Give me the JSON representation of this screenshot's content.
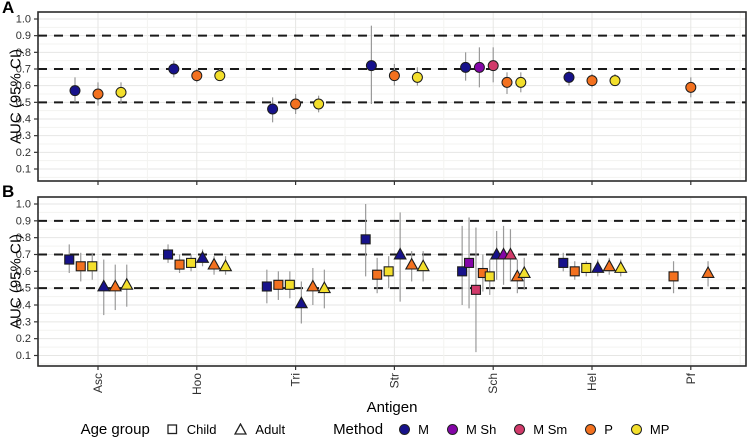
{
  "figure": {
    "panel_a_label": "A",
    "panel_b_label": "B",
    "y_axis_label": "AUC (95% CI)",
    "x_axis_label": "Antigen"
  },
  "axes": {
    "y_ticks": [
      "1.0",
      "0.9",
      "0.8",
      "0.7",
      "0.6",
      "0.5",
      "0.4",
      "0.3",
      "0.2",
      "0.1"
    ],
    "y_range": [
      0.1,
      1.0
    ],
    "reference_lines": [
      0.9,
      0.7,
      0.5
    ],
    "antigens": [
      "Asc",
      "Hoo",
      "Tri",
      "Str",
      "Sch",
      "Hel",
      "Pf"
    ]
  },
  "legend": {
    "age_group": {
      "title": "Age group",
      "items": [
        {
          "label": "Child",
          "shape": "square"
        },
        {
          "label": "Adult",
          "shape": "triangle"
        }
      ]
    },
    "method": {
      "title": "Method",
      "items": [
        {
          "label": "M",
          "color": "#17128B"
        },
        {
          "label": "M Sh",
          "color": "#8405A7"
        },
        {
          "label": "M Sm",
          "color": "#D13A6A"
        },
        {
          "label": "P",
          "color": "#F3711F"
        },
        {
          "label": "MP",
          "color": "#F3DF2C"
        }
      ]
    }
  },
  "chart_data": [
    {
      "panel": "A",
      "type": "scatter",
      "marker": "circle",
      "ylabel": "AUC (95% CI)",
      "ylim": [
        0.1,
        1.0
      ],
      "grid": true,
      "points": [
        {
          "antigen": "Asc",
          "method": "M",
          "auc": 0.57,
          "ci_low": 0.5,
          "ci_high": 0.65
        },
        {
          "antigen": "Asc",
          "method": "P",
          "auc": 0.55,
          "ci_low": 0.48,
          "ci_high": 0.62
        },
        {
          "antigen": "Asc",
          "method": "MP",
          "auc": 0.56,
          "ci_low": 0.49,
          "ci_high": 0.62
        },
        {
          "antigen": "Hoo",
          "method": "M",
          "auc": 0.7,
          "ci_low": 0.65,
          "ci_high": 0.75
        },
        {
          "antigen": "Hoo",
          "method": "P",
          "auc": 0.66,
          "ci_low": 0.62,
          "ci_high": 0.7
        },
        {
          "antigen": "Hoo",
          "method": "MP",
          "auc": 0.66,
          "ci_low": 0.63,
          "ci_high": 0.7
        },
        {
          "antigen": "Tri",
          "method": "M",
          "auc": 0.46,
          "ci_low": 0.38,
          "ci_high": 0.53
        },
        {
          "antigen": "Tri",
          "method": "P",
          "auc": 0.49,
          "ci_low": 0.43,
          "ci_high": 0.55
        },
        {
          "antigen": "Tri",
          "method": "MP",
          "auc": 0.49,
          "ci_low": 0.44,
          "ci_high": 0.54
        },
        {
          "antigen": "Str",
          "method": "M",
          "auc": 0.72,
          "ci_low": 0.49,
          "ci_high": 0.96
        },
        {
          "antigen": "Str",
          "method": "P",
          "auc": 0.66,
          "ci_low": 0.6,
          "ci_high": 0.73
        },
        {
          "antigen": "Str",
          "method": "MP",
          "auc": 0.65,
          "ci_low": 0.6,
          "ci_high": 0.71
        },
        {
          "antigen": "Sch",
          "method": "M",
          "auc": 0.71,
          "ci_low": 0.63,
          "ci_high": 0.8
        },
        {
          "antigen": "Sch",
          "method": "M Sh",
          "auc": 0.71,
          "ci_low": 0.59,
          "ci_high": 0.83
        },
        {
          "antigen": "Sch",
          "method": "M Sm",
          "auc": 0.72,
          "ci_low": 0.62,
          "ci_high": 0.83
        },
        {
          "antigen": "Sch",
          "method": "P",
          "auc": 0.62,
          "ci_low": 0.55,
          "ci_high": 0.68
        },
        {
          "antigen": "Sch",
          "method": "MP",
          "auc": 0.62,
          "ci_low": 0.56,
          "ci_high": 0.68
        },
        {
          "antigen": "Hel",
          "method": "M",
          "auc": 0.65,
          "ci_low": 0.6,
          "ci_high": 0.69
        },
        {
          "antigen": "Hel",
          "method": "P",
          "auc": 0.63,
          "ci_low": 0.59,
          "ci_high": 0.67
        },
        {
          "antigen": "Hel",
          "method": "MP",
          "auc": 0.63,
          "ci_low": 0.6,
          "ci_high": 0.67
        },
        {
          "antigen": "Pf",
          "method": "P",
          "auc": 0.59,
          "ci_low": 0.53,
          "ci_high": 0.65
        }
      ]
    },
    {
      "panel": "B",
      "type": "scatter",
      "markers": {
        "Child": "square",
        "Adult": "triangle"
      },
      "ylabel": "AUC (95% CI)",
      "ylim": [
        0.1,
        1.0
      ],
      "grid": true,
      "points": [
        {
          "antigen": "Asc",
          "age_group": "Child",
          "method": "M",
          "auc": 0.67,
          "ci_low": 0.59,
          "ci_high": 0.76
        },
        {
          "antigen": "Asc",
          "age_group": "Child",
          "method": "P",
          "auc": 0.63,
          "ci_low": 0.54,
          "ci_high": 0.71
        },
        {
          "antigen": "Asc",
          "age_group": "Child",
          "method": "MP",
          "auc": 0.63,
          "ci_low": 0.55,
          "ci_high": 0.71
        },
        {
          "antigen": "Asc",
          "age_group": "Adult",
          "method": "M",
          "auc": 0.51,
          "ci_low": 0.34,
          "ci_high": 0.67
        },
        {
          "antigen": "Asc",
          "age_group": "Adult",
          "method": "P",
          "auc": 0.51,
          "ci_low": 0.37,
          "ci_high": 0.64
        },
        {
          "antigen": "Asc",
          "age_group": "Adult",
          "method": "MP",
          "auc": 0.52,
          "ci_low": 0.39,
          "ci_high": 0.64
        },
        {
          "antigen": "Hoo",
          "age_group": "Child",
          "method": "M",
          "auc": 0.7,
          "ci_low": 0.65,
          "ci_high": 0.76
        },
        {
          "antigen": "Hoo",
          "age_group": "Child",
          "method": "P",
          "auc": 0.64,
          "ci_low": 0.59,
          "ci_high": 0.7
        },
        {
          "antigen": "Hoo",
          "age_group": "Child",
          "method": "MP",
          "auc": 0.65,
          "ci_low": 0.6,
          "ci_high": 0.7
        },
        {
          "antigen": "Hoo",
          "age_group": "Adult",
          "method": "M",
          "auc": 0.68,
          "ci_low": 0.63,
          "ci_high": 0.73
        },
        {
          "antigen": "Hoo",
          "age_group": "Adult",
          "method": "P",
          "auc": 0.64,
          "ci_low": 0.58,
          "ci_high": 0.69
        },
        {
          "antigen": "Hoo",
          "age_group": "Adult",
          "method": "MP",
          "auc": 0.63,
          "ci_low": 0.58,
          "ci_high": 0.69
        },
        {
          "antigen": "Tri",
          "age_group": "Child",
          "method": "M",
          "auc": 0.51,
          "ci_low": 0.41,
          "ci_high": 0.61
        },
        {
          "antigen": "Tri",
          "age_group": "Child",
          "method": "P",
          "auc": 0.52,
          "ci_low": 0.43,
          "ci_high": 0.6
        },
        {
          "antigen": "Tri",
          "age_group": "Child",
          "method": "MP",
          "auc": 0.52,
          "ci_low": 0.44,
          "ci_high": 0.6
        },
        {
          "antigen": "Tri",
          "age_group": "Adult",
          "method": "M",
          "auc": 0.41,
          "ci_low": 0.29,
          "ci_high": 0.54
        },
        {
          "antigen": "Tri",
          "age_group": "Adult",
          "method": "P",
          "auc": 0.51,
          "ci_low": 0.4,
          "ci_high": 0.62
        },
        {
          "antigen": "Tri",
          "age_group": "Adult",
          "method": "MP",
          "auc": 0.5,
          "ci_low": 0.38,
          "ci_high": 0.61
        },
        {
          "antigen": "Str",
          "age_group": "Child",
          "method": "M",
          "auc": 0.79,
          "ci_low": 0.57,
          "ci_high": 1.0
        },
        {
          "antigen": "Str",
          "age_group": "Child",
          "method": "P",
          "auc": 0.58,
          "ci_low": 0.47,
          "ci_high": 0.68
        },
        {
          "antigen": "Str",
          "age_group": "Child",
          "method": "MP",
          "auc": 0.6,
          "ci_low": 0.5,
          "ci_high": 0.69
        },
        {
          "antigen": "Str",
          "age_group": "Adult",
          "method": "M",
          "auc": 0.7,
          "ci_low": 0.42,
          "ci_high": 0.95
        },
        {
          "antigen": "Str",
          "age_group": "Adult",
          "method": "P",
          "auc": 0.64,
          "ci_low": 0.54,
          "ci_high": 0.72
        },
        {
          "antigen": "Str",
          "age_group": "Adult",
          "method": "MP",
          "auc": 0.63,
          "ci_low": 0.54,
          "ci_high": 0.72
        },
        {
          "antigen": "Sch",
          "age_group": "Child",
          "method": "M",
          "auc": 0.6,
          "ci_low": 0.4,
          "ci_high": 0.87
        },
        {
          "antigen": "Sch",
          "age_group": "Child",
          "method": "M Sh",
          "auc": 0.65,
          "ci_low": 0.38,
          "ci_high": 0.92
        },
        {
          "antigen": "Sch",
          "age_group": "Child",
          "method": "M Sm",
          "auc": 0.49,
          "ci_low": 0.12,
          "ci_high": 0.86
        },
        {
          "antigen": "Sch",
          "age_group": "Child",
          "method": "P",
          "auc": 0.59,
          "ci_low": 0.48,
          "ci_high": 0.7
        },
        {
          "antigen": "Sch",
          "age_group": "Child",
          "method": "MP",
          "auc": 0.57,
          "ci_low": 0.46,
          "ci_high": 0.67
        },
        {
          "antigen": "Sch",
          "age_group": "Adult",
          "method": "M",
          "auc": 0.7,
          "ci_low": 0.55,
          "ci_high": 0.84
        },
        {
          "antigen": "Sch",
          "age_group": "Adult",
          "method": "M Sh",
          "auc": 0.7,
          "ci_low": 0.52,
          "ci_high": 0.87
        },
        {
          "antigen": "Sch",
          "age_group": "Adult",
          "method": "M Sm",
          "auc": 0.7,
          "ci_low": 0.54,
          "ci_high": 0.85
        },
        {
          "antigen": "Sch",
          "age_group": "Adult",
          "method": "P",
          "auc": 0.57,
          "ci_low": 0.47,
          "ci_high": 0.67
        },
        {
          "antigen": "Sch",
          "age_group": "Adult",
          "method": "MP",
          "auc": 0.59,
          "ci_low": 0.49,
          "ci_high": 0.68
        },
        {
          "antigen": "Hel",
          "age_group": "Child",
          "method": "M",
          "auc": 0.65,
          "ci_low": 0.6,
          "ci_high": 0.71
        },
        {
          "antigen": "Hel",
          "age_group": "Child",
          "method": "P",
          "auc": 0.6,
          "ci_low": 0.55,
          "ci_high": 0.66
        },
        {
          "antigen": "Hel",
          "age_group": "Child",
          "method": "MP",
          "auc": 0.62,
          "ci_low": 0.57,
          "ci_high": 0.66
        },
        {
          "antigen": "Hel",
          "age_group": "Adult",
          "method": "M",
          "auc": 0.62,
          "ci_low": 0.57,
          "ci_high": 0.67
        },
        {
          "antigen": "Hel",
          "age_group": "Adult",
          "method": "P",
          "auc": 0.63,
          "ci_low": 0.58,
          "ci_high": 0.68
        },
        {
          "antigen": "Hel",
          "age_group": "Adult",
          "method": "MP",
          "auc": 0.62,
          "ci_low": 0.57,
          "ci_high": 0.67
        },
        {
          "antigen": "Pf",
          "age_group": "Child",
          "method": "P",
          "auc": 0.57,
          "ci_low": 0.47,
          "ci_high": 0.66
        },
        {
          "antigen": "Pf",
          "age_group": "Adult",
          "method": "P",
          "auc": 0.59,
          "ci_low": 0.51,
          "ci_high": 0.66
        }
      ]
    }
  ]
}
